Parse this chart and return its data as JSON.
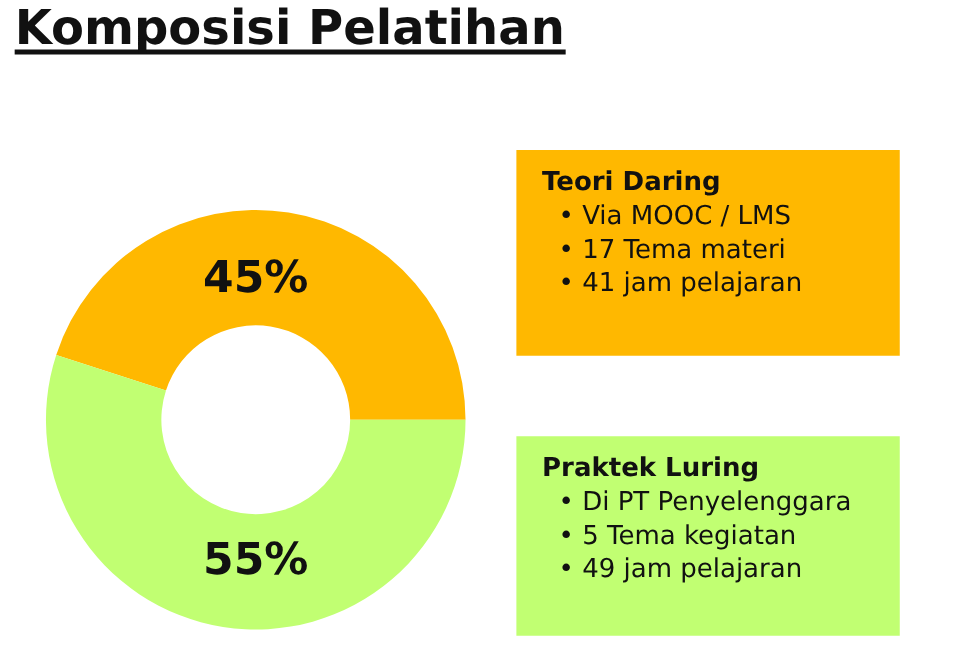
{
  "chart_data": {
    "type": "donut",
    "title": "Komposisi Pelatihan",
    "categories": [
      "Teori Daring",
      "Praktek Luring"
    ],
    "values": [
      45,
      55
    ],
    "colors": [
      "#ffb800",
      "#c1ff72"
    ],
    "value_labels": [
      "45%",
      "55%"
    ],
    "annotations": [
      "• Via MOOC / LMS\n• 17 Tema materi\n• 41 jam pelajaran",
      "• Di PT Penyelenggara\n• 5 Tema kegiatan\n• 49 jam pelajaran"
    ]
  }
}
